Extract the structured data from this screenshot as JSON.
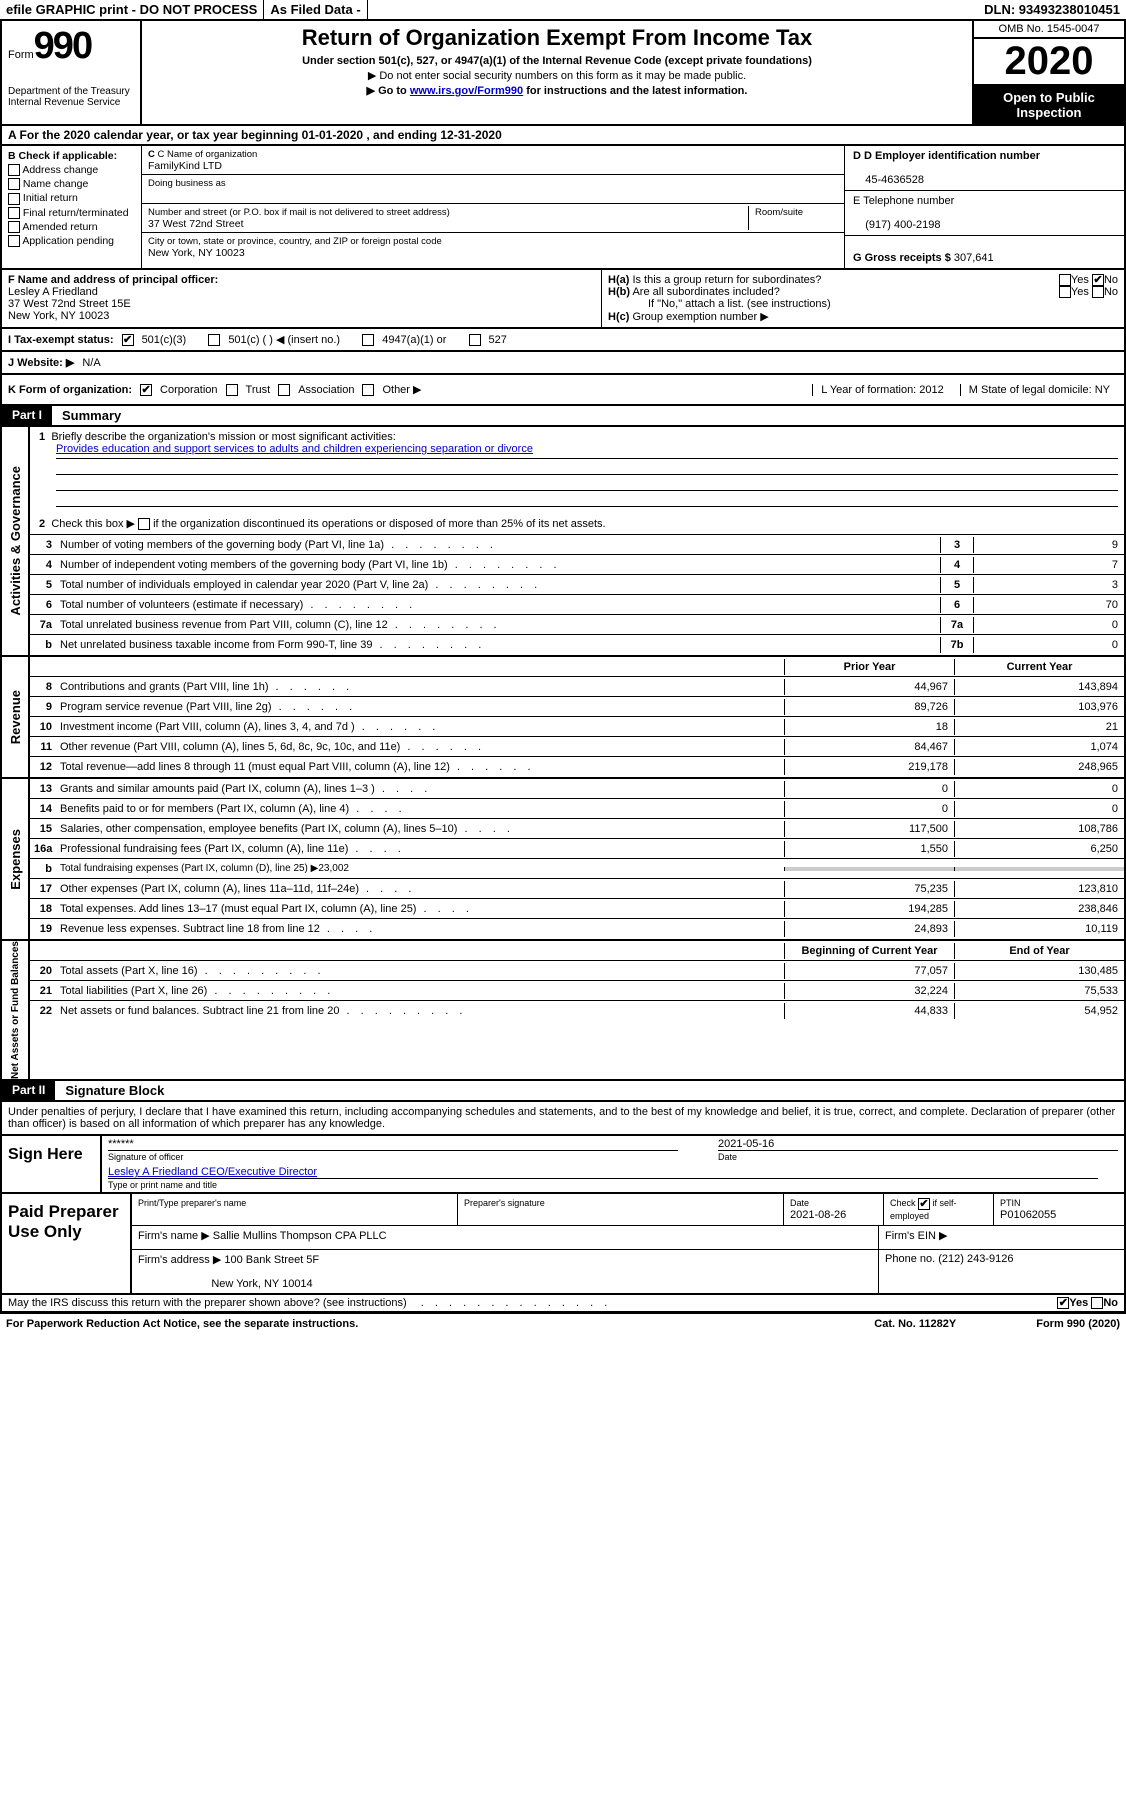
{
  "top": {
    "efile": "efile GRAPHIC print - DO NOT PROCESS",
    "asfiled": "As Filed Data -",
    "dln": "DLN: 93493238010451"
  },
  "header": {
    "form_label": "Form",
    "form_number": "990",
    "dept": "Department of the Treasury\nInternal Revenue Service",
    "title": "Return of Organization Exempt From Income Tax",
    "subtitle": "Under section 501(c), 527, or 4947(a)(1) of the Internal Revenue Code (except private foundations)",
    "note1": "▶ Do not enter social security numbers on this form as it may be made public.",
    "note2_pre": "▶ Go to ",
    "note2_link": "www.irs.gov/Form990",
    "note2_post": " for instructions and the latest information.",
    "omb": "OMB No. 1545-0047",
    "year": "2020",
    "inspect": "Open to Public Inspection"
  },
  "section_a": "A  For the 2020 calendar year, or tax year beginning 01-01-2020   , and ending 12-31-2020",
  "box_b": {
    "title": "B Check if applicable:",
    "items": [
      "Address change",
      "Name change",
      "Initial return",
      "Final return/terminated",
      "Amended return",
      "Application pending"
    ]
  },
  "box_c": {
    "c_label": "C Name of organization",
    "org": "FamilyKind LTD",
    "dba_label": "Doing business as",
    "dba": "",
    "addr_label": "Number and street (or P.O. box if mail is not delivered to street address)",
    "room_label": "Room/suite",
    "addr": "37 West 72nd Street",
    "city_label": "City or town, state or province, country, and ZIP or foreign postal code",
    "city": "New York, NY  10023"
  },
  "box_d": {
    "d_label": "D Employer identification number",
    "ein": "45-4636528",
    "e_label": "E Telephone number",
    "phone": "(917) 400-2198",
    "g_label": "G Gross receipts $",
    "gross": "307,641"
  },
  "box_f": {
    "f_label": "F  Name and address of principal officer:",
    "name": "Lesley A Friedland",
    "addr1": "37 West 72nd Street 15E",
    "addr2": "New York, NY  10023"
  },
  "box_h": {
    "ha": "H(a)  Is this a group return for subordinates?",
    "hb": "H(b)  Are all subordinates included?",
    "hb_note": "If \"No,\" attach a list. (see instructions)",
    "hc": "H(c)  Group exemption number ▶",
    "yes": "Yes",
    "no": "No"
  },
  "row_i": {
    "label": "I   Tax-exempt status:",
    "opt1": "501(c)(3)",
    "opt2": "501(c) (  ) ◀ (insert no.)",
    "opt3": "4947(a)(1) or",
    "opt4": "527"
  },
  "row_j": {
    "label": "J  Website: ▶",
    "val": "N/A"
  },
  "row_k": {
    "label": "K Form of organization:",
    "opts": [
      "Corporation",
      "Trust",
      "Association",
      "Other ▶"
    ],
    "l": "L Year of formation: 2012",
    "m": "M State of legal domicile: NY"
  },
  "part1": {
    "tag": "Part I",
    "title": "Summary"
  },
  "mission": {
    "num1": "1",
    "label1": "Briefly describe the organization's mission or most significant activities:",
    "text": "Provides education and support services to adults and children experiencing separation or divorce",
    "num2": "2",
    "label2_pre": "Check this box ▶ ",
    "label2_post": " if the organization discontinued its operations or disposed of more than 25% of its net assets."
  },
  "gov_lines": [
    {
      "n": "3",
      "desc": "Number of voting members of the governing body (Part VI, line 1a)",
      "cell": "3",
      "val": "9"
    },
    {
      "n": "4",
      "desc": "Number of independent voting members of the governing body (Part VI, line 1b)",
      "cell": "4",
      "val": "7"
    },
    {
      "n": "5",
      "desc": "Total number of individuals employed in calendar year 2020 (Part V, line 2a)",
      "cell": "5",
      "val": "3"
    },
    {
      "n": "6",
      "desc": "Total number of volunteers (estimate if necessary)",
      "cell": "6",
      "val": "70"
    },
    {
      "n": "7a",
      "desc": "Total unrelated business revenue from Part VIII, column (C), line 12",
      "cell": "7a",
      "val": "0"
    },
    {
      "n": "b",
      "desc": "Net unrelated business taxable income from Form 990-T, line 39",
      "cell": "7b",
      "val": "0"
    }
  ],
  "rev_header": {
    "prior": "Prior Year",
    "current": "Current Year"
  },
  "rev_lines": [
    {
      "n": "8",
      "desc": "Contributions and grants (Part VIII, line 1h)",
      "prior": "44,967",
      "current": "143,894"
    },
    {
      "n": "9",
      "desc": "Program service revenue (Part VIII, line 2g)",
      "prior": "89,726",
      "current": "103,976"
    },
    {
      "n": "10",
      "desc": "Investment income (Part VIII, column (A), lines 3, 4, and 7d )",
      "prior": "18",
      "current": "21"
    },
    {
      "n": "11",
      "desc": "Other revenue (Part VIII, column (A), lines 5, 6d, 8c, 9c, 10c, and 11e)",
      "prior": "84,467",
      "current": "1,074"
    },
    {
      "n": "12",
      "desc": "Total revenue—add lines 8 through 11 (must equal Part VIII, column (A), line 12)",
      "prior": "219,178",
      "current": "248,965"
    }
  ],
  "exp_lines": [
    {
      "n": "13",
      "desc": "Grants and similar amounts paid (Part IX, column (A), lines 1–3 )",
      "prior": "0",
      "current": "0"
    },
    {
      "n": "14",
      "desc": "Benefits paid to or for members (Part IX, column (A), line 4)",
      "prior": "0",
      "current": "0"
    },
    {
      "n": "15",
      "desc": "Salaries, other compensation, employee benefits (Part IX, column (A), lines 5–10)",
      "prior": "117,500",
      "current": "108,786"
    },
    {
      "n": "16a",
      "desc": "Professional fundraising fees (Part IX, column (A), line 11e)",
      "prior": "1,550",
      "current": "6,250"
    },
    {
      "n": "b",
      "desc": "Total fundraising expenses (Part IX, column (D), line 25) ▶23,002",
      "prior": "",
      "current": "",
      "grey": true
    },
    {
      "n": "17",
      "desc": "Other expenses (Part IX, column (A), lines 11a–11d, 11f–24e)",
      "prior": "75,235",
      "current": "123,810"
    },
    {
      "n": "18",
      "desc": "Total expenses. Add lines 13–17 (must equal Part IX, column (A), line 25)",
      "prior": "194,285",
      "current": "238,846"
    },
    {
      "n": "19",
      "desc": "Revenue less expenses. Subtract line 18 from line 12",
      "prior": "24,893",
      "current": "10,119"
    }
  ],
  "net_header": {
    "prior": "Beginning of Current Year",
    "current": "End of Year"
  },
  "net_lines": [
    {
      "n": "20",
      "desc": "Total assets (Part X, line 16)",
      "prior": "77,057",
      "current": "130,485"
    },
    {
      "n": "21",
      "desc": "Total liabilities (Part X, line 26)",
      "prior": "32,224",
      "current": "75,533"
    },
    {
      "n": "22",
      "desc": "Net assets or fund balances. Subtract line 21 from line 20",
      "prior": "44,833",
      "current": "54,952"
    }
  ],
  "part2": {
    "tag": "Part II",
    "title": "Signature Block"
  },
  "declaration": "Under penalties of perjury, I declare that I have examined this return, including accompanying schedules and statements, and to the best of my knowledge and belief, it is true, correct, and complete. Declaration of preparer (other than officer) is based on all information of which preparer has any knowledge.",
  "sign": {
    "label": "Sign Here",
    "stars": "******",
    "date": "2021-05-16",
    "sig_of_officer": "Signature of officer",
    "date_lbl": "Date",
    "name": "Lesley A Friedland  CEO/Executive Director",
    "name_lbl": "Type or print name and title"
  },
  "preparer": {
    "label": "Paid Preparer Use Only",
    "print_lbl": "Print/Type preparer's name",
    "sig_lbl": "Preparer's signature",
    "date_lbl": "Date",
    "date": "2021-08-26",
    "check_lbl": "Check",
    "self_emp": "if self-employed",
    "ptin_lbl": "PTIN",
    "ptin": "P01062055",
    "firm_name_lbl": "Firm's name    ▶",
    "firm_name": "Sallie Mullins Thompson CPA PLLC",
    "firm_ein_lbl": "Firm's EIN ▶",
    "firm_addr_lbl": "Firm's address ▶",
    "firm_addr": "100 Bank Street 5F",
    "firm_city": "New York, NY  10014",
    "phone_lbl": "Phone no.",
    "phone": "(212) 243-9126"
  },
  "discuss": {
    "text": "May the IRS discuss this return with the preparer shown above? (see instructions)",
    "yes": "Yes",
    "no": "No"
  },
  "footer": {
    "paperwork": "For Paperwork Reduction Act Notice, see the separate instructions.",
    "cat": "Cat. No. 11282Y",
    "form": "Form 990 (2020)"
  }
}
